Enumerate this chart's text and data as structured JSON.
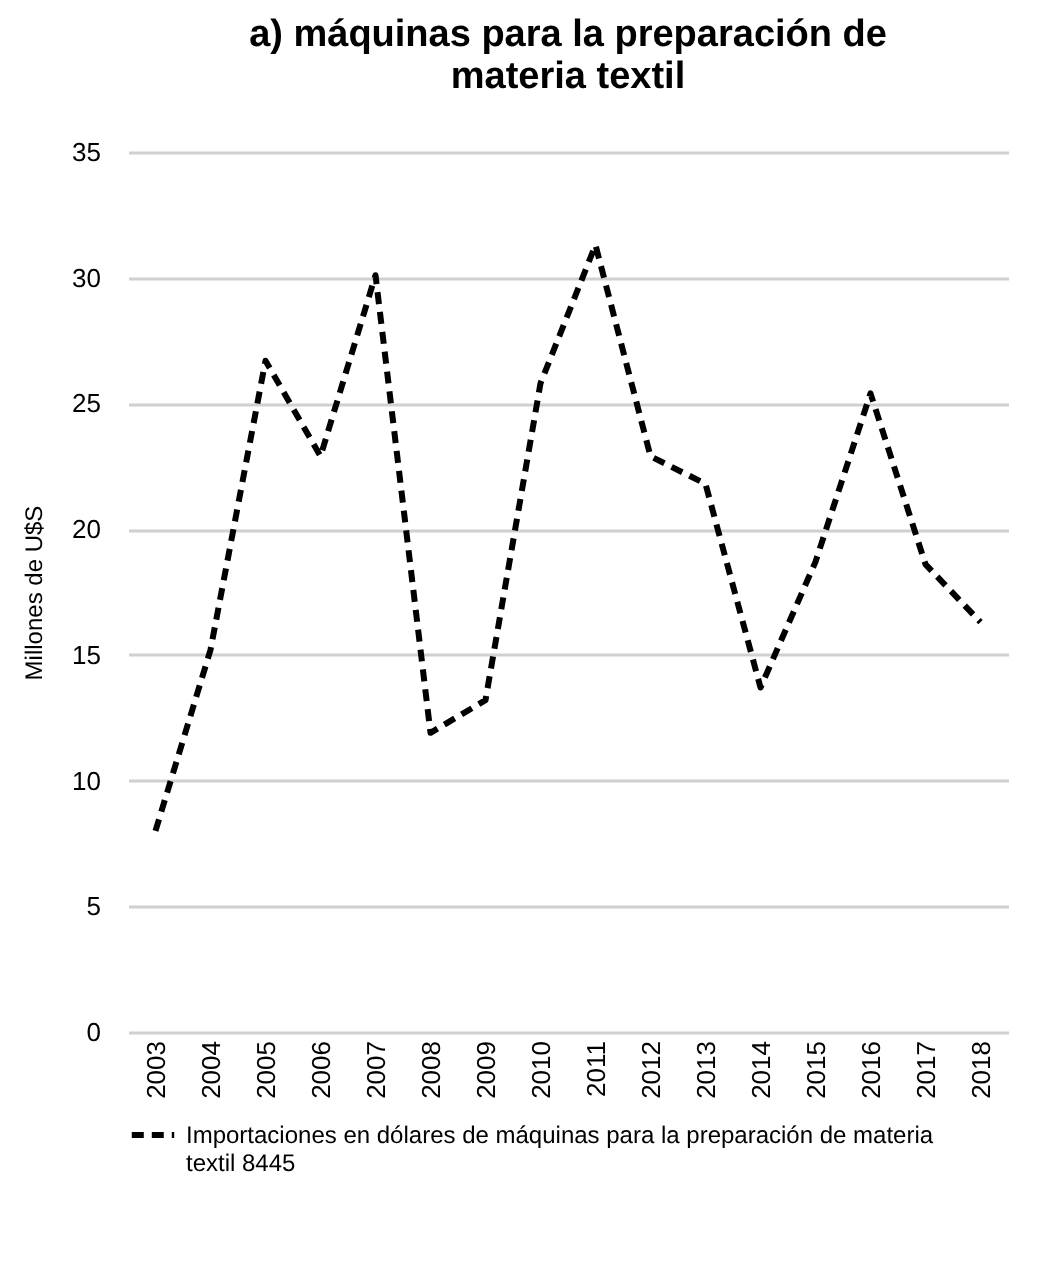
{
  "chart_data": {
    "type": "line",
    "title": "a) máquinas para la preparación de materia textil",
    "ylabel": "Millones de U$S",
    "categories": [
      "2003",
      "2004",
      "2005",
      "2006",
      "2007",
      "2008",
      "2009",
      "2010",
      "2011",
      "2012",
      "2013",
      "2014",
      "2015",
      "2016",
      "2017",
      "2018"
    ],
    "series": [
      {
        "name": "Importaciones en dólares de máquinas para la preparación de materia textil 8445",
        "color": "#000000",
        "line_style": "dashed",
        "values": [
          8.0,
          15.2,
          26.7,
          22.9,
          30.1,
          11.9,
          13.2,
          25.8,
          31.3,
          22.9,
          21.8,
          13.7,
          18.7,
          25.4,
          18.6,
          16.3
        ]
      }
    ],
    "ylim": [
      0,
      35
    ],
    "yticks": [
      0,
      5,
      10,
      15,
      20,
      25,
      30,
      35
    ],
    "grid": "y",
    "legend": "bottom",
    "marker": "none"
  }
}
